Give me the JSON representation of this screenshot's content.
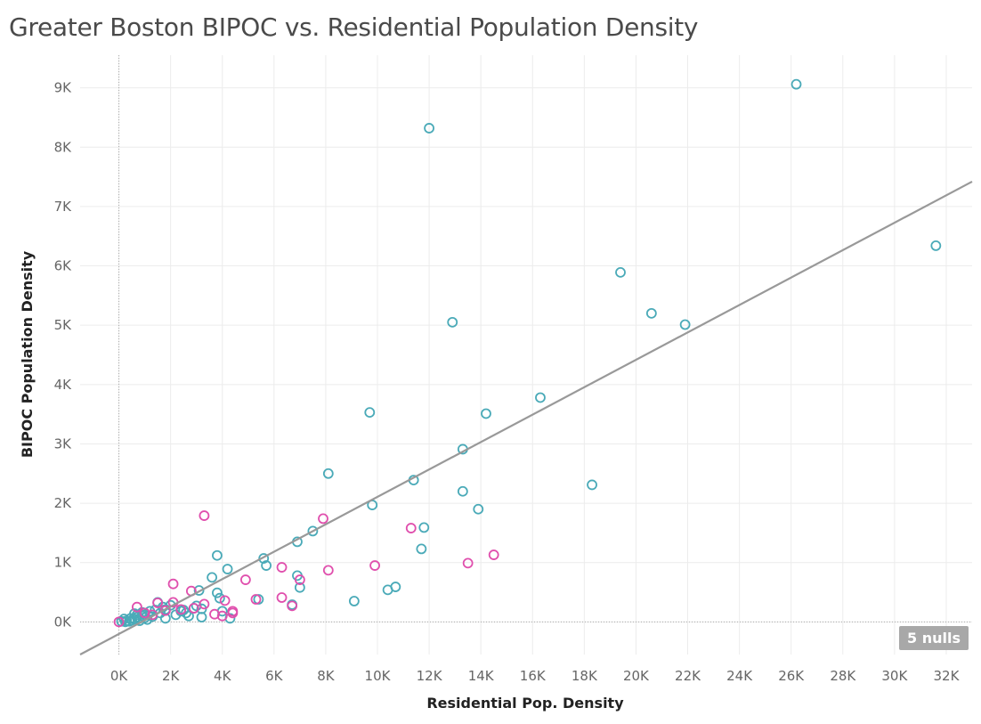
{
  "chart_data": {
    "type": "scatter",
    "title": "Greater Boston BIPOC vs. Residential Population Density",
    "xlabel": "Residential Pop. Density",
    "ylabel": "BIPOC Population Density",
    "xlim": [
      -1500,
      33000
    ],
    "ylim": [
      -550,
      9550
    ],
    "x_ticks": [
      0,
      2000,
      4000,
      6000,
      8000,
      10000,
      12000,
      14000,
      16000,
      18000,
      20000,
      22000,
      24000,
      26000,
      28000,
      30000,
      32000
    ],
    "x_tick_labels": [
      "0K",
      "2K",
      "4K",
      "6K",
      "8K",
      "10K",
      "12K",
      "14K",
      "16K",
      "18K",
      "20K",
      "22K",
      "24K",
      "26K",
      "28K",
      "30K",
      "32K"
    ],
    "y_ticks": [
      0,
      1000,
      2000,
      3000,
      4000,
      5000,
      6000,
      7000,
      8000,
      9000
    ],
    "y_tick_labels": [
      "0K",
      "1K",
      "2K",
      "3K",
      "4K",
      "5K",
      "6K",
      "7K",
      "8K",
      "9K"
    ],
    "grid": true,
    "nulls_label": "5 nulls",
    "trend_line": {
      "x": [
        -1500,
        33000
      ],
      "y": [
        -550,
        7420
      ],
      "color": "#999999"
    },
    "series": [
      {
        "color": "#4aaab8",
        "points": [
          [
            26200,
            9060
          ],
          [
            12000,
            8320
          ],
          [
            31600,
            6340
          ],
          [
            19400,
            5890
          ],
          [
            20600,
            5200
          ],
          [
            21900,
            5010
          ],
          [
            12900,
            5050
          ],
          [
            16300,
            3780
          ],
          [
            9700,
            3530
          ],
          [
            14200,
            3510
          ],
          [
            13300,
            2910
          ],
          [
            8100,
            2500
          ],
          [
            11400,
            2390
          ],
          [
            18300,
            2310
          ],
          [
            13300,
            2200
          ],
          [
            9800,
            1970
          ],
          [
            13900,
            1900
          ],
          [
            11800,
            1590
          ],
          [
            7500,
            1530
          ],
          [
            6900,
            1350
          ],
          [
            11700,
            1230
          ],
          [
            3800,
            1120
          ],
          [
            5600,
            1070
          ],
          [
            5700,
            950
          ],
          [
            4200,
            890
          ],
          [
            6900,
            780
          ],
          [
            3600,
            750
          ],
          [
            7000,
            580
          ],
          [
            10700,
            590
          ],
          [
            10400,
            540
          ],
          [
            3100,
            530
          ],
          [
            3800,
            490
          ],
          [
            5400,
            380
          ],
          [
            9100,
            350
          ],
          [
            6700,
            290
          ],
          [
            1500,
            330
          ],
          [
            2000,
            280
          ],
          [
            3900,
            400
          ],
          [
            4000,
            180
          ],
          [
            3200,
            220
          ],
          [
            2500,
            200
          ],
          [
            1800,
            210
          ],
          [
            4300,
            60
          ],
          [
            3200,
            80
          ],
          [
            2700,
            100
          ],
          [
            1800,
            60
          ],
          [
            1000,
            120
          ],
          [
            1200,
            180
          ],
          [
            1600,
            150
          ],
          [
            2200,
            120
          ],
          [
            800,
            60
          ],
          [
            900,
            100
          ],
          [
            600,
            50
          ],
          [
            700,
            120
          ],
          [
            500,
            30
          ],
          [
            400,
            10
          ],
          [
            300,
            20
          ],
          [
            1300,
            90
          ],
          [
            1400,
            200
          ],
          [
            2400,
            180
          ],
          [
            2900,
            230
          ],
          [
            600,
            140
          ],
          [
            700,
            80
          ],
          [
            1100,
            40
          ],
          [
            800,
            20
          ],
          [
            450,
            60
          ],
          [
            250,
            0
          ],
          [
            100,
            10
          ],
          [
            200,
            50
          ],
          [
            900,
            160
          ],
          [
            1000,
            70
          ],
          [
            1700,
            250
          ],
          [
            2600,
            150
          ],
          [
            3000,
            270
          ]
        ]
      },
      {
        "color": "#e04fad",
        "points": [
          [
            3300,
            1790
          ],
          [
            7900,
            1740
          ],
          [
            11300,
            1580
          ],
          [
            14500,
            1130
          ],
          [
            13500,
            990
          ],
          [
            9900,
            950
          ],
          [
            6300,
            920
          ],
          [
            8100,
            870
          ],
          [
            4900,
            710
          ],
          [
            7000,
            710
          ],
          [
            2100,
            640
          ],
          [
            2800,
            520
          ],
          [
            6300,
            410
          ],
          [
            5300,
            380
          ],
          [
            4100,
            360
          ],
          [
            2100,
            330
          ],
          [
            1500,
            320
          ],
          [
            3300,
            300
          ],
          [
            700,
            250
          ],
          [
            2900,
            230
          ],
          [
            4400,
            180
          ],
          [
            4400,
            150
          ],
          [
            3700,
            130
          ],
          [
            4000,
            100
          ],
          [
            1000,
            150
          ],
          [
            1300,
            120
          ],
          [
            0,
            0
          ],
          [
            6700,
            270
          ],
          [
            2400,
            210
          ],
          [
            1800,
            190
          ]
        ]
      }
    ]
  }
}
